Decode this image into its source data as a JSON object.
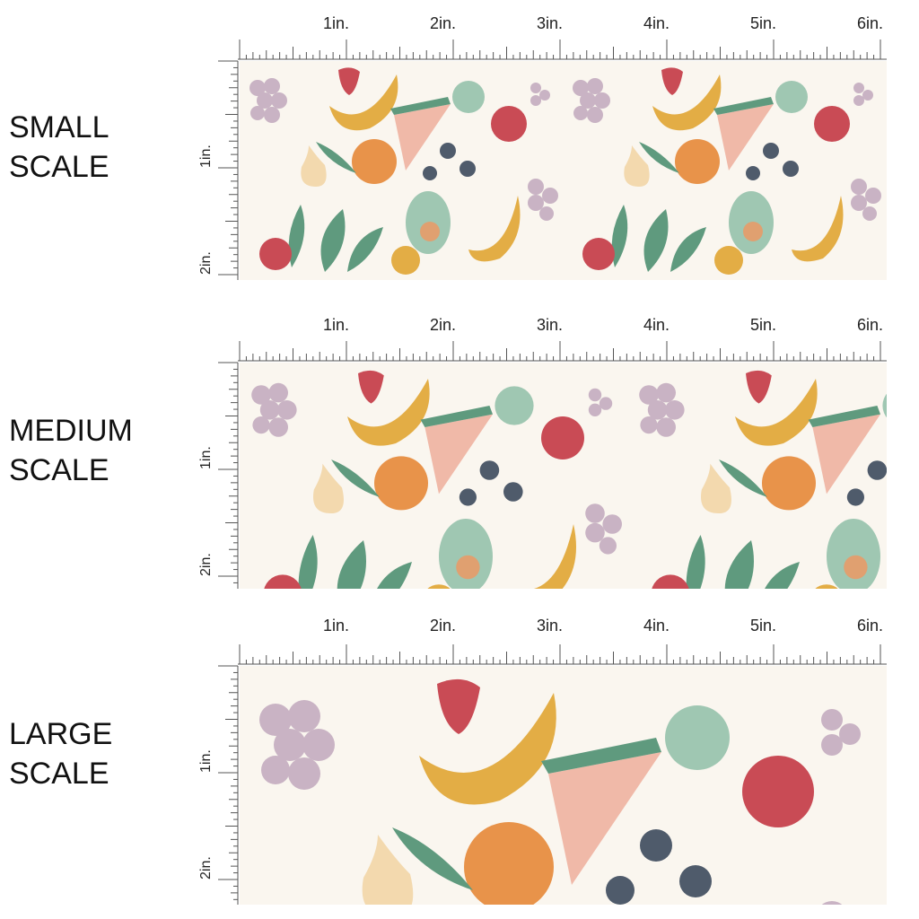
{
  "panels": [
    {
      "label": [
        "SMALL",
        "SCALE"
      ]
    },
    {
      "label": [
        "MEDIUM",
        "SCALE"
      ]
    },
    {
      "label": [
        "LARGE",
        "SCALE"
      ]
    }
  ],
  "ruler": {
    "top": [
      "1in.",
      "2in.",
      "3in.",
      "4in.",
      "5in.",
      "6in."
    ],
    "side": [
      "1in.",
      "2in."
    ]
  }
}
